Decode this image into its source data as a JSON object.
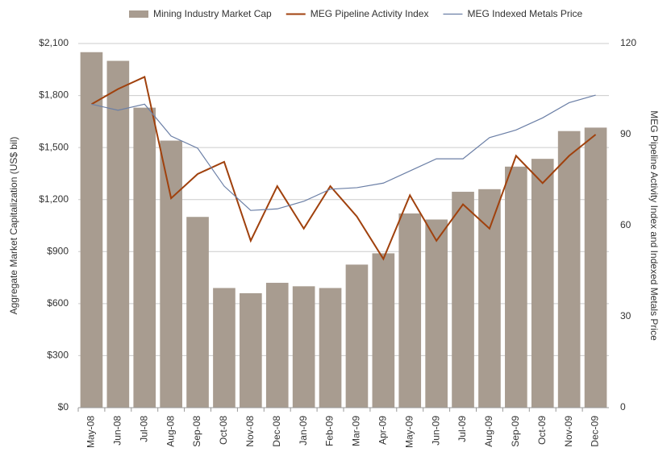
{
  "chart_data": {
    "type": "bar-line",
    "ylabel": "Aggregate Market Capitalization (US$ bil)",
    "y2label": "MEG Pipeline Activity Index and Indexed Metals Price",
    "categories": [
      "May-08",
      "Jun-08",
      "Jul-08",
      "Aug-08",
      "Sep-08",
      "Oct-08",
      "Nov-08",
      "Dec-08",
      "Jan-09",
      "Feb-09",
      "Mar-09",
      "Apr-09",
      "May-09",
      "Jun-09",
      "Jul-09",
      "Aug-09",
      "Sep-09",
      "Oct-09",
      "Nov-09",
      "Dec-09"
    ],
    "series": [
      {
        "name": "Mining Industry Market Cap",
        "type": "bar",
        "color": "#a89c90",
        "axis": "y",
        "values": [
          2050,
          2000,
          1730,
          1540,
          1100,
          690,
          660,
          720,
          700,
          690,
          825,
          890,
          1120,
          1085,
          1245,
          1260,
          1390,
          1435,
          1595,
          1615
        ]
      },
      {
        "name": "MEG Pipeline Activity Index",
        "type": "line",
        "color": "#a0410d",
        "axis": "y2",
        "values": [
          100,
          105,
          109,
          69,
          77,
          81,
          55,
          73,
          59,
          73,
          63,
          49,
          70,
          55,
          67,
          59,
          83,
          74,
          83,
          90
        ]
      },
      {
        "name": "MEG Indexed Metals Price",
        "type": "line",
        "color": "#6b7fa6",
        "axis": "y2",
        "values": [
          100,
          98,
          100,
          89.5,
          85.5,
          73,
          65,
          65.5,
          68,
          72,
          72.5,
          74,
          78,
          82,
          82,
          89,
          91.5,
          95.5,
          100.5,
          103
        ]
      }
    ],
    "ylim": [
      0,
      2100
    ],
    "yticks": [
      {
        "value": 0,
        "label": "$0"
      },
      {
        "value": 300,
        "label": "$300"
      },
      {
        "value": 600,
        "label": "$600"
      },
      {
        "value": 900,
        "label": "$900"
      },
      {
        "value": 1200,
        "label": "$1,200"
      },
      {
        "value": 1500,
        "label": "$1,500"
      },
      {
        "value": 1800,
        "label": "$1,800"
      },
      {
        "value": 2100,
        "label": "$2,100"
      }
    ],
    "y2lim": [
      0,
      120
    ],
    "y2ticks": [
      0,
      30,
      60,
      90,
      120
    ],
    "grid": true
  }
}
